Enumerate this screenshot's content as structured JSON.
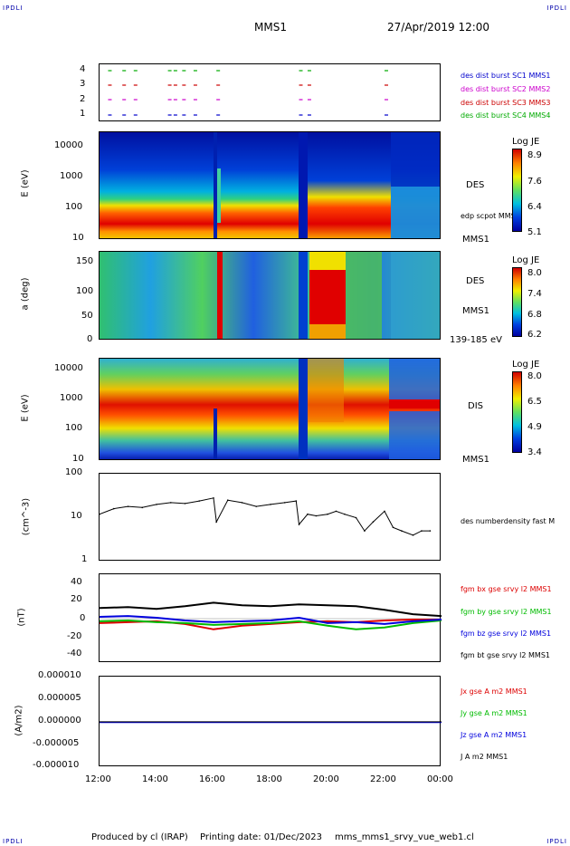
{
  "corner_labels": {
    "top_left": "IPDLI",
    "top_right": "IPDLI",
    "bottom_left": "IPDLI",
    "bottom_right": "IPDLI"
  },
  "header": {
    "spacecraft": "MMS1",
    "datetime": "27/Apr/2019 12:00"
  },
  "time_axis": {
    "ticks": [
      "12:00",
      "14:00",
      "16:00",
      "18:00",
      "20:00",
      "22:00",
      "00:00"
    ]
  },
  "footer": {
    "produced_by": "Produced by cl (IRAP)",
    "printing_date": "Printing date: 01/Dec/2023",
    "file": "mms_mms1_srvy_vue_web1.cl"
  },
  "colors": {
    "c1": "#0000cc",
    "c2": "#cc00cc",
    "c3": "#cc0000",
    "c4": "#00aa00",
    "bx": "#dd0000",
    "by": "#00bb00",
    "bz": "#0000dd",
    "bt": "#000000"
  },
  "panels": {
    "burst": {
      "yticks": [
        "4",
        "3",
        "2",
        "1"
      ],
      "legend": [
        "des dist burst SC1 MMS1",
        "des dist burst SC2 MMS2",
        "des dist burst SC3 MMS3",
        "des dist burst SC4 MMS4"
      ]
    },
    "des_energy": {
      "ylabel": "E (eV)",
      "yticks": [
        "10000",
        "1000",
        "100",
        "10"
      ],
      "label": "DES",
      "sublabel": "MMS1",
      "overlay": "edp scpot MMS1",
      "cbar_title": "Log JE",
      "cbar_ticks": [
        "8.9",
        "7.6",
        "6.4",
        "5.1"
      ]
    },
    "des_pitch": {
      "ylabel": "a (deg)",
      "yticks": [
        "150",
        "100",
        "50",
        "0"
      ],
      "label": "DES",
      "sublabel": "MMS1",
      "range": "139-185 eV",
      "cbar_title": "Log JE",
      "cbar_ticks": [
        "8.0",
        "7.4",
        "6.8",
        "6.2"
      ]
    },
    "dis_energy": {
      "ylabel": "E (eV)",
      "yticks": [
        "10000",
        "1000",
        "100",
        "10"
      ],
      "label": "DIS",
      "sublabel": "MMS1",
      "cbar_title": "Log JE",
      "cbar_ticks": [
        "8.0",
        "6.5",
        "4.9",
        "3.4"
      ]
    },
    "density": {
      "ylabel": "(cm^-3)",
      "yticks": [
        "100",
        "10",
        "1"
      ],
      "legend": "des numberdensity fast M"
    },
    "bfield": {
      "ylabel": "(nT)",
      "yticks": [
        "40",
        "20",
        "0",
        "-20",
        "-40"
      ],
      "legend": [
        "fgm bx gse srvy l2 MMS1",
        "fgm by gse srvy l2 MMS1",
        "fgm bz gse srvy l2 MMS1",
        "fgm bt gse srvy l2 MMS1"
      ]
    },
    "current": {
      "ylabel": "(A/m2)",
      "yticks": [
        "0.000010",
        "0.000005",
        "0.000000",
        "-0.000005",
        "-0.000010"
      ],
      "legend": [
        "Jx gse A m2 MMS1",
        "Jy gse A m2 MMS1",
        "Jz gse A m2 MMS1",
        "J A m2 MMS1"
      ]
    }
  },
  "chart_data": {
    "type": "line",
    "title": "MMS1",
    "x_range": [
      "12:00",
      "00:00"
    ],
    "density_series": {
      "x_hours": [
        12.0,
        12.5,
        13.0,
        13.5,
        14.0,
        14.5,
        15.0,
        15.5,
        16.0,
        16.1,
        16.5,
        17.0,
        17.5,
        18.0,
        18.5,
        18.9,
        19.0,
        19.3,
        19.6,
        20.0,
        20.3,
        20.6,
        21.0,
        21.3,
        21.6,
        22.0,
        22.3,
        22.6,
        23.0,
        23.3,
        23.6
      ],
      "n_cm3": [
        12,
        16,
        18,
        17,
        20,
        22,
        21,
        24,
        28,
        8,
        25,
        22,
        18,
        20,
        22,
        24,
        7,
        12,
        11,
        12,
        14,
        12,
        10,
        5,
        8,
        14,
        6,
        5,
        4,
        5,
        5
      ]
    },
    "bfield_series": [
      {
        "name": "fgm bx gse srvy l2 MMS1",
        "x_hours": [
          12,
          13,
          14,
          15,
          16,
          17,
          18,
          19,
          20,
          21,
          22,
          23,
          24
        ],
        "values": [
          -5,
          -4,
          -3,
          -6,
          -12,
          -8,
          -6,
          -4,
          -3,
          -4,
          -2,
          -1,
          -1
        ]
      },
      {
        "name": "fgm by gse srvy l2 MMS1",
        "x_hours": [
          12,
          13,
          14,
          15,
          16,
          17,
          18,
          19,
          20,
          21,
          22,
          23,
          24
        ],
        "values": [
          -3,
          -2,
          -4,
          -5,
          -7,
          -6,
          -5,
          -3,
          -8,
          -12,
          -10,
          -5,
          -2
        ]
      },
      {
        "name": "fgm bz gse srvy l2 MMS1",
        "x_hours": [
          12,
          13,
          14,
          15,
          16,
          17,
          18,
          19,
          20,
          21,
          22,
          23,
          24
        ],
        "values": [
          2,
          3,
          1,
          -2,
          -4,
          -3,
          -2,
          1,
          -5,
          -4,
          -6,
          -3,
          -1
        ]
      },
      {
        "name": "fgm bt gse srvy l2 MMS1",
        "x_hours": [
          12,
          13,
          14,
          15,
          16,
          17,
          18,
          19,
          20,
          21,
          22,
          23,
          24
        ],
        "values": [
          12,
          13,
          11,
          14,
          18,
          15,
          14,
          16,
          15,
          14,
          10,
          5,
          3
        ]
      }
    ]
  }
}
